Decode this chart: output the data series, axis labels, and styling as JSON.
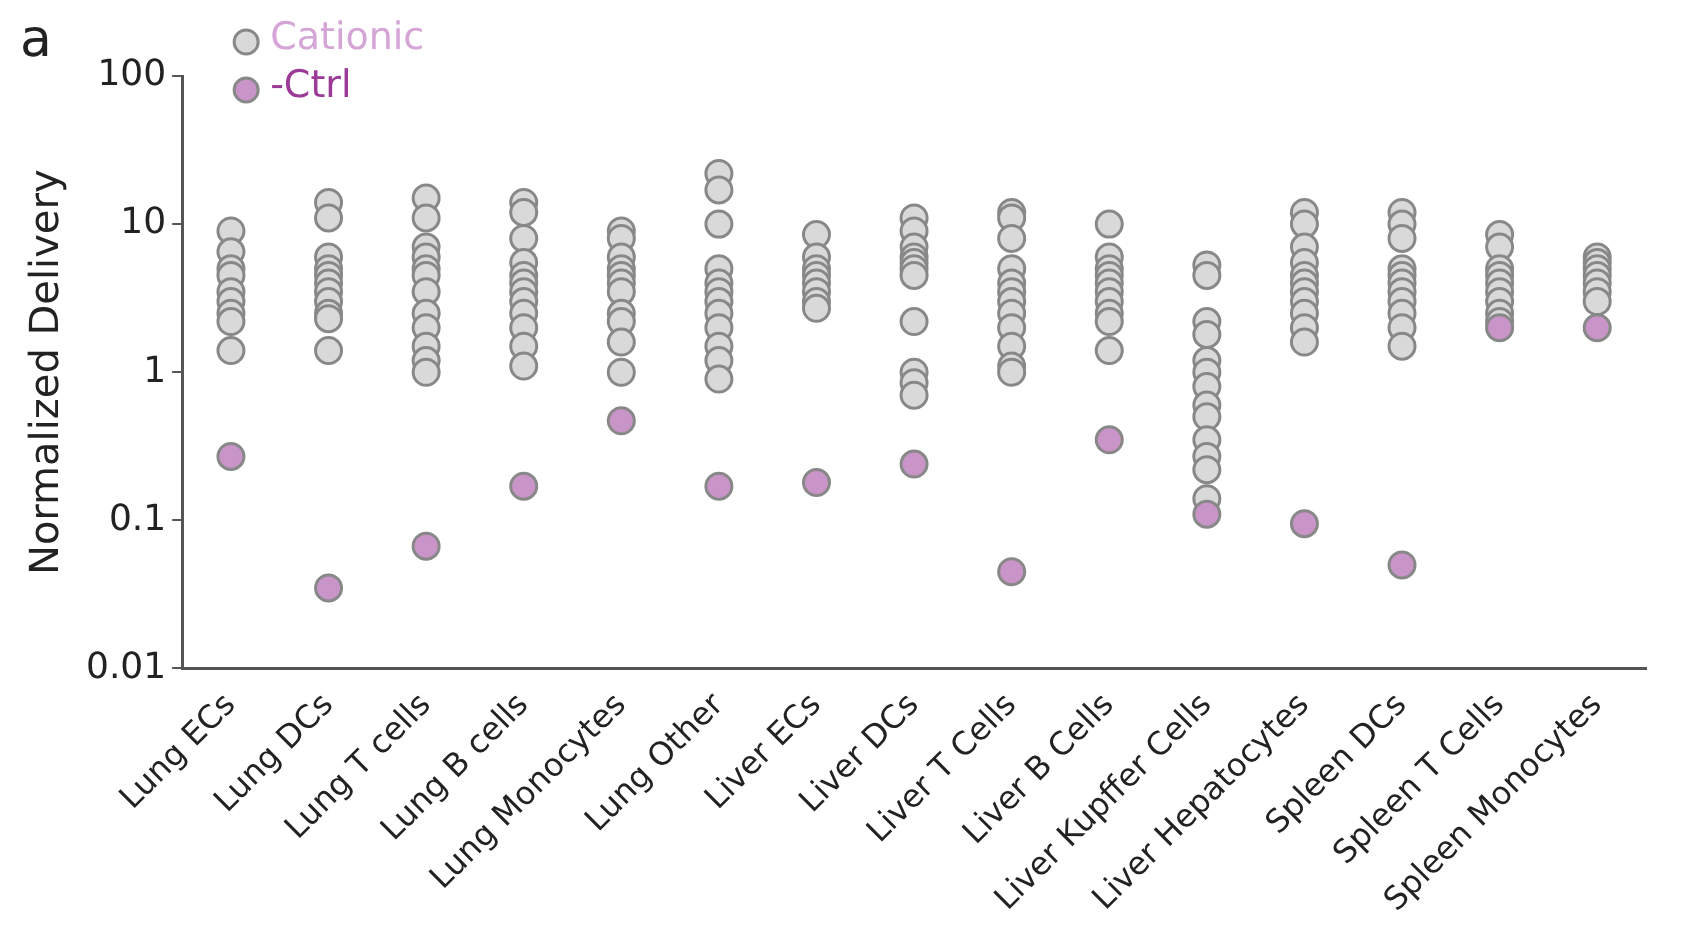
{
  "chart_data": {
    "type": "scatter",
    "title": "a",
    "ylabel": "Normalized Delivery",
    "categories": [
      "Lung ECs",
      "Lung DCs",
      "Lung T cells",
      "Lung B cells",
      "Lung Monocytes",
      "Lung Other",
      "Liver ECs",
      "Liver DCs",
      "Liver T Cells",
      "Liver B Cells",
      "Liver Kupffer Cells",
      "Liver Hepatocytes",
      "Spleen DCs",
      "Spleen T Cells",
      "Spleen Monocytes"
    ],
    "log": "y",
    "ylim": [
      0.01,
      100
    ],
    "yticks": [
      0.01,
      0.1,
      1,
      10,
      100
    ],
    "grid": false,
    "legend": "top left",
    "marker": "circle",
    "series": [
      {
        "name": "Cationic",
        "color": "#d9d9d9",
        "x": [
          "Lung ECs",
          "Lung ECs",
          "Lung ECs",
          "Lung ECs",
          "Lung ECs",
          "Lung ECs",
          "Lung ECs",
          "Lung ECs",
          "Lung ECs",
          "Lung DCs",
          "Lung DCs",
          "Lung DCs",
          "Lung DCs",
          "Lung DCs",
          "Lung DCs",
          "Lung DCs",
          "Lung DCs",
          "Lung DCs",
          "Lung DCs",
          "Lung DCs",
          "Lung T cells",
          "Lung T cells",
          "Lung T cells",
          "Lung T cells",
          "Lung T cells",
          "Lung T cells",
          "Lung T cells",
          "Lung T cells",
          "Lung T cells",
          "Lung T cells",
          "Lung T cells",
          "Lung T cells",
          "Lung B cells",
          "Lung B cells",
          "Lung B cells",
          "Lung B cells",
          "Lung B cells",
          "Lung B cells",
          "Lung B cells",
          "Lung B cells",
          "Lung B cells",
          "Lung B cells",
          "Lung B cells",
          "Lung B cells",
          "Lung Monocytes",
          "Lung Monocytes",
          "Lung Monocytes",
          "Lung Monocytes",
          "Lung Monocytes",
          "Lung Monocytes",
          "Lung Monocytes",
          "Lung Monocytes",
          "Lung Monocytes",
          "Lung Monocytes",
          "Lung Monocytes",
          "Lung Other",
          "Lung Other",
          "Lung Other",
          "Lung Other",
          "Lung Other",
          "Lung Other",
          "Lung Other",
          "Lung Other",
          "Lung Other",
          "Lung Other",
          "Lung Other",
          "Lung Other",
          "Liver ECs",
          "Liver ECs",
          "Liver ECs",
          "Liver ECs",
          "Liver ECs",
          "Liver ECs",
          "Liver ECs",
          "Liver ECs",
          "Liver DCs",
          "Liver DCs",
          "Liver DCs",
          "Liver DCs",
          "Liver DCs",
          "Liver DCs",
          "Liver DCs",
          "Liver DCs",
          "Liver DCs",
          "Liver DCs",
          "Liver DCs",
          "Liver T Cells",
          "Liver T Cells",
          "Liver T Cells",
          "Liver T Cells",
          "Liver T Cells",
          "Liver T Cells",
          "Liver T Cells",
          "Liver T Cells",
          "Liver T Cells",
          "Liver T Cells",
          "Liver T Cells",
          "Liver T Cells",
          "Liver B Cells",
          "Liver B Cells",
          "Liver B Cells",
          "Liver B Cells",
          "Liver B Cells",
          "Liver B Cells",
          "Liver B Cells",
          "Liver B Cells",
          "Liver B Cells",
          "Liver B Cells",
          "Liver Kupffer Cells",
          "Liver Kupffer Cells",
          "Liver Kupffer Cells",
          "Liver Kupffer Cells",
          "Liver Kupffer Cells",
          "Liver Kupffer Cells",
          "Liver Kupffer Cells",
          "Liver Kupffer Cells",
          "Liver Kupffer Cells",
          "Liver Kupffer Cells",
          "Liver Kupffer Cells",
          "Liver Kupffer Cells",
          "Liver Kupffer Cells",
          "Liver Hepatocytes",
          "Liver Hepatocytes",
          "Liver Hepatocytes",
          "Liver Hepatocytes",
          "Liver Hepatocytes",
          "Liver Hepatocytes",
          "Liver Hepatocytes",
          "Liver Hepatocytes",
          "Liver Hepatocytes",
          "Liver Hepatocytes",
          "Liver Hepatocytes",
          "Spleen DCs",
          "Spleen DCs",
          "Spleen DCs",
          "Spleen DCs",
          "Spleen DCs",
          "Spleen DCs",
          "Spleen DCs",
          "Spleen DCs",
          "Spleen DCs",
          "Spleen DCs",
          "Spleen DCs",
          "Spleen T Cells",
          "Spleen T Cells",
          "Spleen T Cells",
          "Spleen T Cells",
          "Spleen T Cells",
          "Spleen T Cells",
          "Spleen T Cells",
          "Spleen T Cells",
          "Spleen T Cells",
          "Spleen Monocytes",
          "Spleen Monocytes",
          "Spleen Monocytes",
          "Spleen Monocytes",
          "Spleen Monocytes",
          "Spleen Monocytes",
          "Spleen Monocytes"
        ],
        "values": [
          9,
          6.5,
          5,
          4.5,
          3.5,
          3,
          2.5,
          2.2,
          1.4,
          14,
          11,
          6,
          5,
          4.5,
          4,
          3.5,
          3,
          2.5,
          2.3,
          1.4,
          15,
          11,
          7,
          6,
          5,
          4.5,
          3.5,
          2.5,
          2,
          1.5,
          1.2,
          1,
          14,
          12,
          8,
          5.5,
          4.5,
          4,
          3.5,
          3,
          2.5,
          2,
          1.5,
          1.1,
          9,
          8,
          6,
          5,
          4.5,
          4,
          3.5,
          2.5,
          2.2,
          1.6,
          1,
          22,
          17,
          10,
          5,
          4,
          3.5,
          3,
          2.5,
          2,
          1.5,
          1.2,
          0.9,
          8.5,
          6,
          5,
          4.5,
          4,
          3.5,
          3,
          2.7,
          11,
          9,
          7,
          6,
          5.5,
          5,
          4.5,
          2.2,
          1,
          0.85,
          0.7,
          12,
          11,
          8,
          5,
          4,
          3.5,
          3,
          2.5,
          2,
          1.5,
          1.1,
          1,
          10,
          6,
          5,
          4.5,
          4,
          3.5,
          3,
          2.5,
          2.2,
          1.4,
          5.3,
          4.5,
          2.2,
          1.8,
          1.2,
          1,
          0.8,
          0.6,
          0.5,
          0.35,
          0.27,
          0.22,
          0.14,
          12,
          10,
          7,
          5.5,
          4.5,
          4,
          3.5,
          3,
          2.5,
          2,
          1.6,
          12,
          10,
          8,
          5,
          4.5,
          4,
          3.5,
          3,
          2.5,
          2,
          1.5,
          8.5,
          7,
          5,
          4.5,
          4,
          3.5,
          3,
          2.5,
          2.2,
          6,
          5.5,
          5,
          4.5,
          4,
          3.5,
          3
        ]
      },
      {
        "name": "-Ctrl",
        "color": "#c994c7",
        "x": [
          "Lung ECs",
          "Lung DCs",
          "Lung T cells",
          "Lung B cells",
          "Lung Monocytes",
          "Lung Other",
          "Liver ECs",
          "Liver DCs",
          "Liver T Cells",
          "Liver B Cells",
          "Liver Kupffer Cells",
          "Liver Hepatocytes",
          "Spleen DCs",
          "Spleen T Cells",
          "Spleen Monocytes"
        ],
        "values": [
          0.27,
          0.035,
          0.067,
          0.17,
          0.47,
          0.17,
          0.18,
          0.24,
          0.045,
          0.35,
          0.11,
          0.095,
          0.05,
          2,
          2
        ]
      }
    ]
  }
}
